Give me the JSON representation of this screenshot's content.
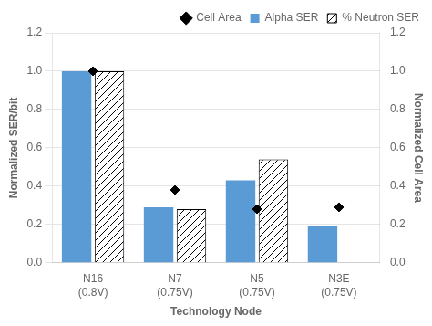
{
  "chart_data": {
    "type": "bar",
    "xlabel": "Technology Node",
    "ylabel": "Normalized SER/bit",
    "y2label": "Normalized Cell Area",
    "categories": [
      "N16\n(0.8V)",
      "N7\n(0.75V)",
      "N5\n(0.75V)",
      "N3E\n(0.75V)"
    ],
    "series": [
      {
        "name": "Alpha SER",
        "color": "#5B9BD5",
        "values": [
          1.0,
          0.29,
          0.43,
          0.19
        ]
      },
      {
        "name": "% Neutron SER",
        "color": "#000000",
        "values": [
          1.0,
          0.28,
          0.54,
          0.0
        ]
      },
      {
        "name": "Cell Area",
        "type": "scatter",
        "marker": "diamond",
        "color": "black",
        "axis": "y2",
        "values": [
          1.0,
          0.38,
          0.28,
          0.29
        ]
      }
    ],
    "ylim": [
      0,
      1.2
    ],
    "yticks": [
      {
        "value": 0,
        "label": "0.0"
      },
      0.2,
      0.4,
      0.6,
      0.8,
      {
        "value": 1.0,
        "label": "1.0"
      },
      1.2
    ],
    "y2lim": [
      0,
      1.2
    ],
    "y2ticks": [
      {
        "value": 0,
        "label": "0.0"
      },
      0.2,
      0.4,
      0.6,
      0.8,
      {
        "value": 1.0,
        "label": "1.0"
      },
      1.2
    ],
    "grid": true,
    "legend": "upper right"
  }
}
